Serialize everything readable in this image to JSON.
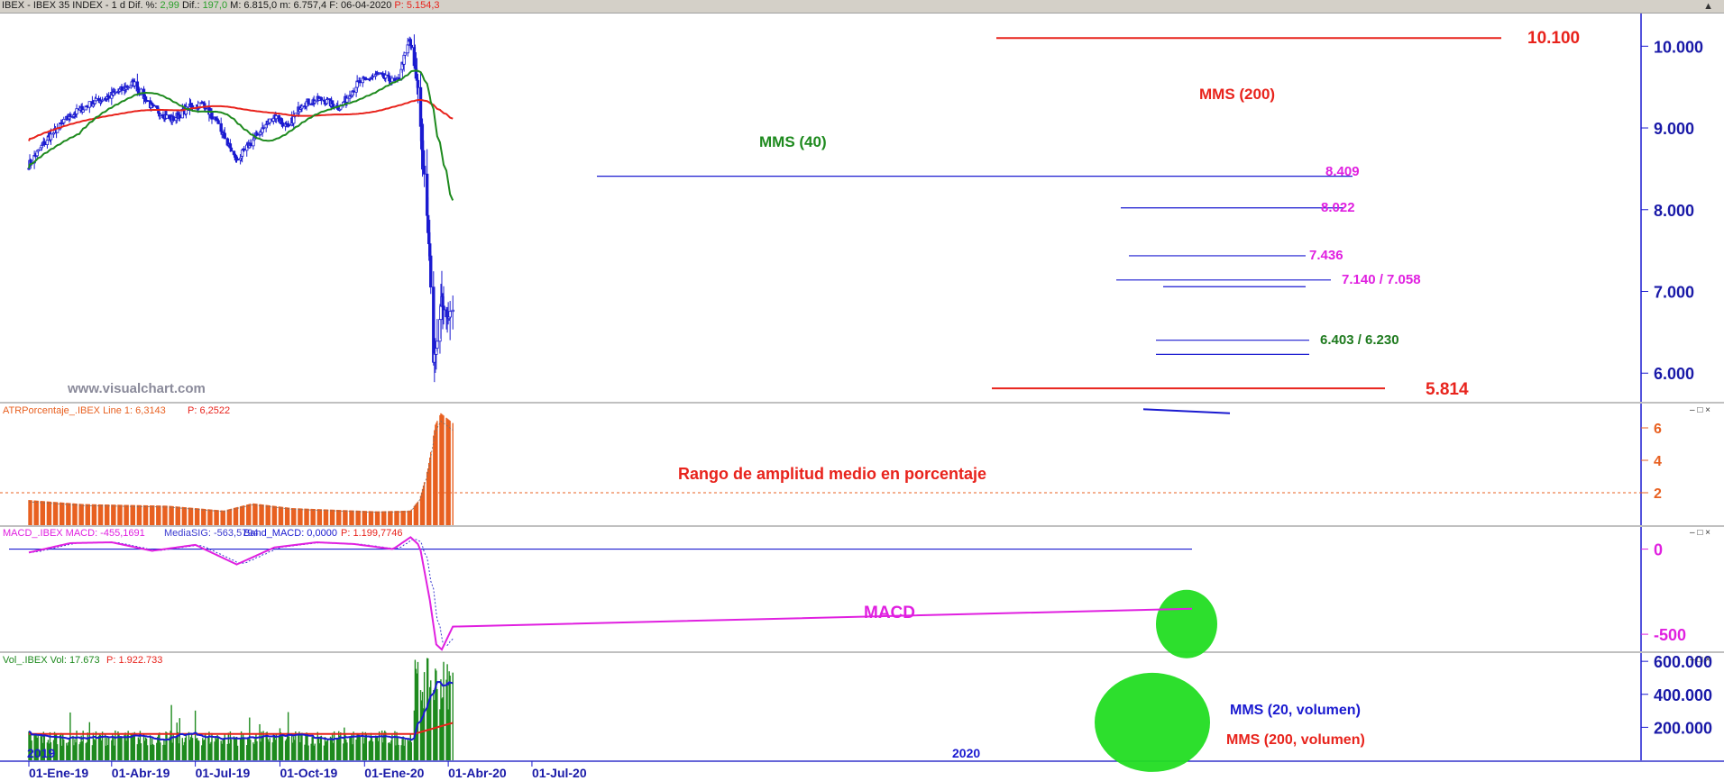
{
  "header": {
    "symbol_line": "IBEX - IBEX 35 INDEX -  1 d  Dif. %:",
    "dif_pct": "2,99",
    "dif_label": "Dif.:",
    "dif": "197,0",
    "ohlc": "M: 6.815,0  m: 6.757,4  F: 06-04-2020",
    "p_label": "P: 5.154,3"
  },
  "watermark": "www.visualchart.com",
  "panels": {
    "atr": {
      "header_name": "ATRPorcentaje_.IBEX  Line 1: 6,3143",
      "header_p": "P: 6,2522",
      "annotation": "Rango de amplitud medio en porcentaje"
    },
    "macd": {
      "header_name": "MACD_.IBEX  MACD: -455,1691",
      "header_sig": "MediaSIG: -563,5794",
      "header_band": "Band_MACD: 0,0000",
      "header_p": "P: 1.199,7746",
      "annotation": "MACD"
    },
    "volume": {
      "header_name": "Vol_.IBEX  Vol: 17.673",
      "header_p": "P: 1.922.733",
      "annotation_mm20": "MMS (20, volumen)",
      "annotation_mm200": "MMS (200, volumen)",
      "year_labels": [
        "2019",
        "2020"
      ]
    }
  },
  "price_annotations": {
    "mms200": "MMS (200)",
    "mms40": "MMS (40)"
  },
  "levels": [
    {
      "value": 10100,
      "label": "10.100",
      "color": "#e8231c"
    },
    {
      "value": 8409,
      "label": "8.409",
      "color": "#e020e0"
    },
    {
      "value": 8022,
      "label": "8.022",
      "color": "#e020e0"
    },
    {
      "value": 7436,
      "label": "7.436",
      "color": "#e020e0"
    },
    {
      "value": 7140,
      "label": "7.140 / 7.058",
      "color": "#e020e0"
    },
    {
      "value": 6403,
      "label": "6.403 / 6.230",
      "color": "#1e7a1e"
    },
    {
      "value": 5814,
      "label": "5.814",
      "color": "#e8231c"
    }
  ],
  "x_axis": [
    "01-Ene-19",
    "01-Abr-19",
    "01-Jul-19",
    "01-Oct-19",
    "01-Ene-20",
    "01-Abr-20",
    "01-Jul-20"
  ],
  "chart_data": [
    {
      "type": "candlestick",
      "title": "IBEX - IBEX 35 INDEX - 1 d",
      "y_ticks": [
        "10.000",
        "9.000",
        "8.000",
        "7.000",
        "6.000"
      ],
      "ylim": [
        5650,
        10400
      ],
      "series": [
        {
          "name": "MMS (40)",
          "color": "#1e8a1e"
        },
        {
          "name": "MMS (200)",
          "color": "#e8231c"
        }
      ],
      "anchor_closes": [
        {
          "date": "2019-01-01",
          "close": 8550
        },
        {
          "date": "2019-01-20",
          "close": 8850
        },
        {
          "date": "2019-02-15",
          "close": 9150
        },
        {
          "date": "2019-03-10",
          "close": 9300
        },
        {
          "date": "2019-04-01",
          "close": 9400
        },
        {
          "date": "2019-04-25",
          "close": 9550
        },
        {
          "date": "2019-05-15",
          "close": 9250
        },
        {
          "date": "2019-06-05",
          "close": 9100
        },
        {
          "date": "2019-06-25",
          "close": 9250
        },
        {
          "date": "2019-07-10",
          "close": 9300
        },
        {
          "date": "2019-07-25",
          "close": 9050
        },
        {
          "date": "2019-08-15",
          "close": 8600
        },
        {
          "date": "2019-09-05",
          "close": 8900
        },
        {
          "date": "2019-09-25",
          "close": 9150
        },
        {
          "date": "2019-10-10",
          "close": 9000
        },
        {
          "date": "2019-10-25",
          "close": 9300
        },
        {
          "date": "2019-11-15",
          "close": 9350
        },
        {
          "date": "2019-12-05",
          "close": 9250
        },
        {
          "date": "2019-12-25",
          "close": 9550
        },
        {
          "date": "2020-01-15",
          "close": 9650
        },
        {
          "date": "2020-02-05",
          "close": 9550
        },
        {
          "date": "2020-02-19",
          "close": 10080
        },
        {
          "date": "2020-02-28",
          "close": 9500
        },
        {
          "date": "2020-03-06",
          "close": 8400
        },
        {
          "date": "2020-03-12",
          "close": 7400
        },
        {
          "date": "2020-03-16",
          "close": 6150
        },
        {
          "date": "2020-03-20",
          "close": 6400
        },
        {
          "date": "2020-03-25",
          "close": 6900
        },
        {
          "date": "2020-03-30",
          "close": 6650
        },
        {
          "date": "2020-04-06",
          "close": 6815
        }
      ]
    },
    {
      "type": "bar",
      "title": "ATRPorcentaje_.IBEX",
      "y_ticks": [
        "6",
        "4",
        "2"
      ],
      "ylim": [
        0,
        7.5
      ],
      "reference_line": 2,
      "anchor_values": [
        {
          "date": "2019-01-01",
          "value": 1.55
        },
        {
          "date": "2019-03-01",
          "value": 1.3
        },
        {
          "date": "2019-06-01",
          "value": 1.2
        },
        {
          "date": "2019-08-01",
          "value": 0.9
        },
        {
          "date": "2019-09-01",
          "value": 1.35
        },
        {
          "date": "2019-10-15",
          "value": 1.05
        },
        {
          "date": "2020-01-15",
          "value": 0.85
        },
        {
          "date": "2020-02-20",
          "value": 0.9
        },
        {
          "date": "2020-03-01",
          "value": 1.6
        },
        {
          "date": "2020-03-10",
          "value": 3.5
        },
        {
          "date": "2020-03-18",
          "value": 6.2
        },
        {
          "date": "2020-03-24",
          "value": 6.9
        },
        {
          "date": "2020-04-06",
          "value": 6.3
        }
      ]
    },
    {
      "type": "line",
      "title": "MACD_.IBEX",
      "y_ticks": [
        "0",
        "-500"
      ],
      "ylim": [
        -600,
        130
      ],
      "series": [
        {
          "name": "MACD",
          "color": "#e020e0"
        },
        {
          "name": "MediaSIG",
          "color": "#3a3ad0"
        },
        {
          "name": "Band_MACD",
          "color": "#1a1ad0",
          "value": 0
        }
      ],
      "anchor_values": [
        {
          "date": "2019-01-01",
          "macd": -20
        },
        {
          "date": "2019-02-15",
          "macd": 35
        },
        {
          "date": "2019-04-01",
          "macd": 40
        },
        {
          "date": "2019-05-15",
          "macd": -10
        },
        {
          "date": "2019-07-01",
          "macd": 25
        },
        {
          "date": "2019-08-15",
          "macd": -90
        },
        {
          "date": "2019-09-25",
          "macd": 10
        },
        {
          "date": "2019-11-10",
          "macd": 40
        },
        {
          "date": "2019-12-20",
          "macd": 30
        },
        {
          "date": "2020-02-01",
          "macd": 0
        },
        {
          "date": "2020-02-20",
          "macd": 70
        },
        {
          "date": "2020-03-01",
          "macd": 20
        },
        {
          "date": "2020-03-12",
          "macd": -300
        },
        {
          "date": "2020-03-19",
          "macd": -560
        },
        {
          "date": "2020-03-25",
          "macd": -590
        },
        {
          "date": "2020-04-06",
          "macd": -455
        }
      ]
    },
    {
      "type": "bar",
      "title": "Vol_.IBEX",
      "y_ticks": [
        "600.000",
        "400.000",
        "200.000"
      ],
      "ylim": [
        0,
        650000
      ],
      "series": [
        {
          "name": "MMS (20, volumen)",
          "color": "#1a1ad0"
        },
        {
          "name": "MMS (200, volumen)",
          "color": "#e8231c"
        }
      ],
      "typical_volume": 160000,
      "crash_volume_range": [
        300000,
        620000
      ]
    }
  ],
  "colors": {
    "axis": "#1a1ad0",
    "header_bg": "#d4d0c8",
    "candle": "#1a1ad0",
    "atr_bar": "#e86020",
    "vol_bar": "#1e8a1e",
    "highlight": "#22dd22"
  }
}
